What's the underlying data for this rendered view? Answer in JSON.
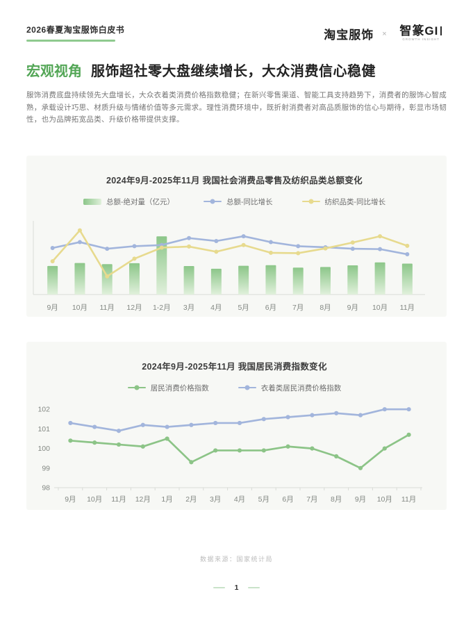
{
  "page": {
    "header": {
      "doc_title": "2026春夏淘宝服饰白皮书",
      "brand_left": "淘宝服饰",
      "brand_sep": "×",
      "brand_right": "智篆GI",
      "brand_caption": "GROWTH INSIGHT"
    },
    "section": {
      "tag": "宏观视角",
      "title": "服饰超社零大盘继续增长，大众消费信心稳健",
      "body": "服饰消费底盘持续领先大盘增长，大众衣着类消费价格指数稳健；在新兴零售渠道、智能工具支持趋势下，消费者的服饰心智成熟，承载设计巧思、材质升级与情绪价值等多元需求。理性消费环境中，既折射消费者对高品质服饰的信心与期待，彰显市场韧性，也为品牌拓宽品类、升级价格带提供支撑。"
    },
    "footer": {
      "source": "数据来源：国家统计局",
      "page_number": "1"
    },
    "colors": {
      "accent_green": "#53a656",
      "underline_green": "#8fca8f",
      "dash_green": "#c9e2c9",
      "card_bg": "#f7f8f5",
      "axis_gray": "#d8dbd6",
      "axis_label": "#838883",
      "bar_top": "#8cc689",
      "bar_bottom": "#e0f0db",
      "line_blue": "#a2b5dc",
      "line_yellow": "#e7da8e",
      "line_green": "#8cc487"
    }
  },
  "chart_data": [
    {
      "type": "combo",
      "title": "2024年9月-2025年11月 我国社会消费品零售及纺织品类总额变化",
      "categories": [
        "9月",
        "10月",
        "11月",
        "12月",
        "1-2月",
        "3月",
        "4月",
        "5月",
        "6月",
        "7月",
        "8月",
        "9月",
        "10月",
        "11月"
      ],
      "series": [
        {
          "name": "总额-绝对量（亿元）",
          "type": "bar",
          "color_top": "#8cc689",
          "color_bottom": "#e0f0db",
          "values": [
            41112,
            45396,
            43763,
            45172,
            83731,
            40940,
            37174,
            41326,
            42287,
            38756,
            39668,
            41971,
            46291,
            44500
          ]
        },
        {
          "name": "总额-同比增长",
          "type": "line",
          "color": "#a2b5dc",
          "values": [
            3.2,
            4.8,
            3.0,
            3.7,
            4.0,
            5.9,
            5.1,
            6.4,
            4.8,
            3.7,
            3.4,
            3.0,
            2.9,
            1.5
          ]
        },
        {
          "name": "纺织品类-同比增长",
          "type": "line",
          "color": "#e7da8e",
          "values": [
            -0.4,
            8.0,
            -4.5,
            0.3,
            3.3,
            3.6,
            2.2,
            4.0,
            1.9,
            1.8,
            3.1,
            4.7,
            6.4,
            3.8
          ]
        }
      ],
      "xlabel": "",
      "ylabel": "",
      "y_axis_labels": "hidden",
      "legend_position": "top",
      "grid": false
    },
    {
      "type": "line",
      "title": "2024年9月-2025年11月 我国居民消费指数变化",
      "categories": [
        "9月",
        "10月",
        "11月",
        "12月",
        "1月",
        "2月",
        "3月",
        "4月",
        "5月",
        "6月",
        "7月",
        "8月",
        "9月",
        "10月",
        "11月"
      ],
      "series": [
        {
          "name": "居民消费价格指数",
          "type": "line",
          "color": "#8cc487",
          "values": [
            100.4,
            100.3,
            100.2,
            100.1,
            100.5,
            99.3,
            99.9,
            99.9,
            99.9,
            100.1,
            100.0,
            99.6,
            99.0,
            100.0,
            100.7
          ]
        },
        {
          "name": "衣着类居民消费价格指数",
          "type": "line",
          "color": "#a2b5dc",
          "values": [
            101.3,
            101.1,
            100.9,
            101.2,
            101.1,
            101.2,
            101.3,
            101.3,
            101.5,
            101.6,
            101.7,
            101.8,
            101.7,
            102.0,
            102.0
          ]
        }
      ],
      "xlabel": "",
      "ylabel": "",
      "ylim": [
        98,
        102.5
      ],
      "yticks": [
        98,
        99,
        100,
        101,
        102
      ],
      "legend_position": "top",
      "grid": false
    }
  ]
}
